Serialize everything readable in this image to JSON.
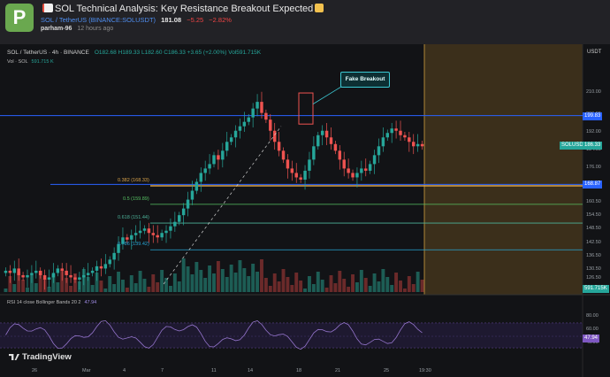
{
  "post": {
    "avatar_letter": "P",
    "title": "SOL Technical Analysis: Key Resistance Breakout Expected",
    "symbol": "SOL / TetherUS (BINANCE:SOLUSDT)",
    "price": "181.08",
    "change": "−5.25",
    "change_pct": "−2.82%",
    "author": "parham-96",
    "time_ago": "12 hours ago",
    "colors": {
      "avatar": "#6aa84f",
      "link": "#4f8ef0",
      "negative": "#ef4444"
    }
  },
  "chart": {
    "legend": "SOL / TetherUS · 4h · BINANCE",
    "ohlc": "O182.68 H189.33 L182.60 C186.33 +3.65 (+2.00%) Vol591.715K",
    "vol_label": "Vol · SOL",
    "vol_value": "591.715 K",
    "rsi_label": "RSI 14 close Bollinger Bands 20 2",
    "rsi_value": "47.94",
    "callout": "Fake Breakout",
    "currency": "USDT",
    "watermark": "TradingView",
    "fib_levels": [
      {
        "label": "0.382 (168.33)",
        "value": 168.33,
        "color": "#d9a34a"
      },
      {
        "label": "0.5 (159.89)",
        "value": 159.89,
        "color": "#57c163"
      },
      {
        "label": "0.618 (151.44)",
        "value": 151.44,
        "color": "#4db39a"
      },
      {
        "label": "0.786 (139.42)",
        "value": 139.42,
        "color": "#27a4d4"
      }
    ],
    "price_tags": [
      {
        "label": "199.83",
        "value": 199.83,
        "color": "#2962ff"
      },
      {
        "label": "SOLUSDT",
        "value": 186.33,
        "color": "#26a69a"
      },
      {
        "label": "186.33",
        "value": 186.33,
        "color": "#26a69a"
      },
      {
        "label": "168.87",
        "value": 168.87,
        "color": "#2962ff"
      },
      {
        "label": "591.715K",
        "value": 126.0,
        "color": "#26a69a"
      },
      {
        "label": "47.94",
        "value": 47.94,
        "color": "#7e57c2"
      }
    ],
    "resistance": 199.83,
    "support": 168.87,
    "price_axis": [
      "210.00",
      "200.00",
      "192.00",
      "184.00",
      "176.00",
      "168.00",
      "160.50",
      "154.50",
      "148.50",
      "142.50",
      "136.50",
      "130.50",
      "126.50"
    ],
    "rsi_axis": [
      "80.00",
      "60.00",
      "40.00"
    ],
    "time_axis": [
      "26",
      "Mar",
      "4",
      "7",
      "11",
      "14",
      "18",
      "21",
      "25",
      "19:30"
    ],
    "chart_data": {
      "type": "candlestick",
      "series": [
        {
          "name": "SOLUSDT",
          "values": [
            130,
            129,
            131,
            128,
            127,
            128,
            129,
            130,
            128,
            126,
            127,
            129,
            131,
            130,
            128,
            127,
            126,
            127,
            128,
            129,
            130,
            132,
            131,
            133,
            135,
            138,
            142,
            145,
            144,
            146,
            147,
            148,
            149,
            147,
            146,
            145,
            147,
            148,
            150,
            152,
            155,
            158,
            162,
            166,
            170,
            174,
            176,
            178,
            182,
            180,
            184,
            188,
            190,
            193,
            195,
            197,
            199,
            203,
            206,
            201,
            198,
            193,
            188,
            184,
            180,
            176,
            174,
            172,
            171,
            175,
            180,
            186,
            191,
            193,
            190,
            187,
            184,
            180,
            176,
            174,
            172,
            174,
            176,
            175,
            178,
            182,
            186,
            190,
            192,
            194,
            193,
            191,
            190,
            188,
            186,
            187,
            186
          ]
        }
      ]
    }
  }
}
